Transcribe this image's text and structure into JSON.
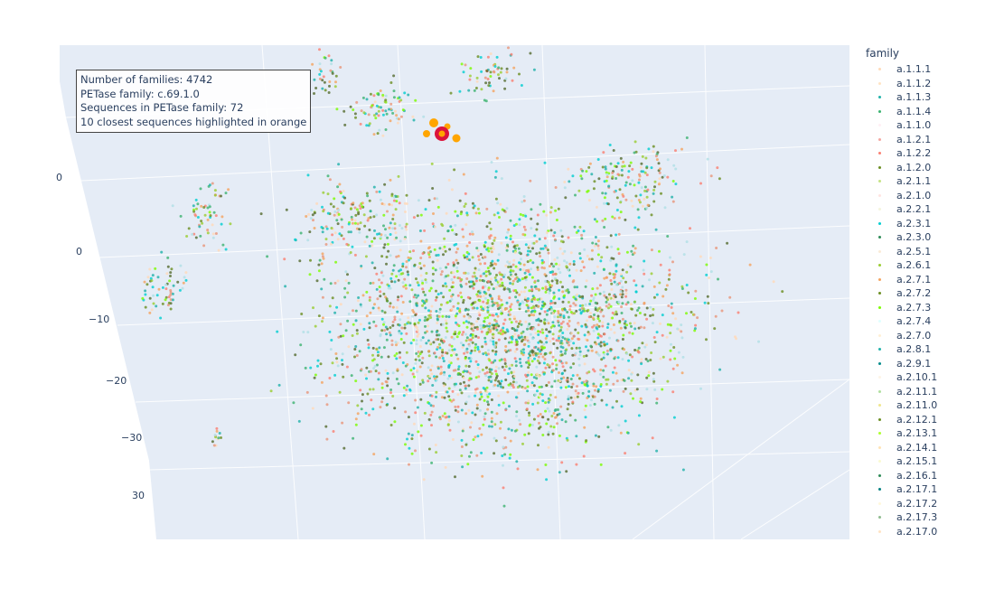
{
  "chart_data": {
    "type": "scatter3d",
    "title": "",
    "legend_title": "family",
    "legend_placement": "right",
    "grid": true,
    "background_color": "#e5ecf6",
    "axis_tick_labels": [
      "0",
      "0",
      "−10",
      "−20",
      "−30",
      "30"
    ],
    "annotation": [
      "Number of families: 4742",
      "PETase family: c.69.1.0",
      "Sequences in PETase family: 72",
      "10 closest sequences highlighted in orange"
    ],
    "highlight": {
      "petase_color": "#dc143c",
      "closest_color": "#ffa500"
    },
    "legend": [
      {
        "label": "a.1.1.1",
        "color": "#ffdab9"
      },
      {
        "label": "a.1.1.2",
        "color": "#ffe4c4"
      },
      {
        "label": "a.1.1.3",
        "color": "#20b2aa"
      },
      {
        "label": "a.1.1.4",
        "color": "#3cb371"
      },
      {
        "label": "a.1.1.0",
        "color": "#fff0f5"
      },
      {
        "label": "a.1.2.1",
        "color": "#f4a7a0"
      },
      {
        "label": "a.1.2.2",
        "color": "#fa8072"
      },
      {
        "label": "a.1.2.0",
        "color": "#6b8e23"
      },
      {
        "label": "a.2.1.1",
        "color": "#c5e384"
      },
      {
        "label": "a.2.1.0",
        "color": "#ffe4e1"
      },
      {
        "label": "a.2.2.1",
        "color": "#f5f5dc"
      },
      {
        "label": "a.2.3.1",
        "color": "#00ced1"
      },
      {
        "label": "a.2.3.0",
        "color": "#2e8b57"
      },
      {
        "label": "a.2.5.1",
        "color": "#faebd7"
      },
      {
        "label": "a.2.6.1",
        "color": "#9acd32"
      },
      {
        "label": "a.2.7.1",
        "color": "#f4a460"
      },
      {
        "label": "a.2.7.2",
        "color": "#6b8e23"
      },
      {
        "label": "a.2.7.3",
        "color": "#7cfc00"
      },
      {
        "label": "a.2.7.4",
        "color": "#e0ffff"
      },
      {
        "label": "a.2.7.0",
        "color": "#ffefd5"
      },
      {
        "label": "a.2.8.1",
        "color": "#20b2aa"
      },
      {
        "label": "a.2.9.1",
        "color": "#008b8b"
      },
      {
        "label": "a.2.10.1",
        "color": "#fdf5e6"
      },
      {
        "label": "a.2.11.1",
        "color": "#b0e0a0"
      },
      {
        "label": "a.2.11.0",
        "color": "#f0e68c"
      },
      {
        "label": "a.2.12.1",
        "color": "#6b8e23"
      },
      {
        "label": "a.2.13.1",
        "color": "#adff2f"
      },
      {
        "label": "a.2.14.1",
        "color": "#ffe4b5"
      },
      {
        "label": "a.2.15.1",
        "color": "#fafad2"
      },
      {
        "label": "a.2.16.1",
        "color": "#2e8b57"
      },
      {
        "label": "a.2.17.1",
        "color": "#008080"
      },
      {
        "label": "a.2.17.2",
        "color": "#fff8dc"
      },
      {
        "label": "a.2.17.3",
        "color": "#8fbc8f"
      },
      {
        "label": "a.2.17.0",
        "color": "#ffe4c4"
      }
    ]
  }
}
